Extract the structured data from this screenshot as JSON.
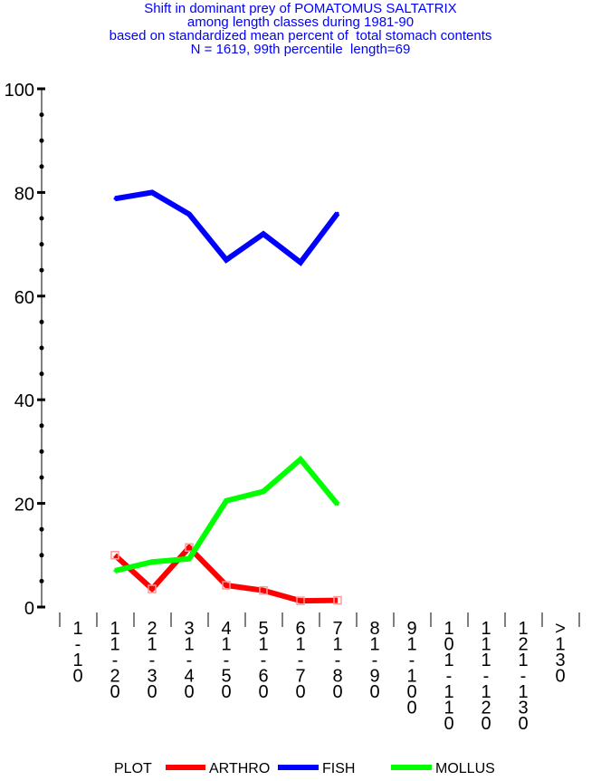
{
  "chart_data": {
    "type": "line",
    "title": [
      "Shift in dominant prey of POMATOMUS SALTATRIX",
      "among length classes during 1981-90",
      "based on standardized mean percent of  total stomach contents",
      "N = 1619, 99th percentile  length=69"
    ],
    "categories": [
      "1-10",
      "11-20",
      "21-30",
      "31-40",
      "41-50",
      "51-60",
      "61-70",
      "71-80",
      "81-90",
      "91-100",
      "101-110",
      "111-120",
      "121-130",
      ">130"
    ],
    "category_columns": [
      [
        "1",
        "-",
        "1",
        "0"
      ],
      [
        "1",
        "1",
        "-",
        "2",
        "0"
      ],
      [
        "2",
        "1",
        "-",
        "3",
        "0"
      ],
      [
        "3",
        "1",
        "-",
        "4",
        "0"
      ],
      [
        "4",
        "1",
        "-",
        "5",
        "0"
      ],
      [
        "5",
        "1",
        "-",
        "6",
        "0"
      ],
      [
        "6",
        "1",
        "-",
        "7",
        "0"
      ],
      [
        "7",
        "1",
        "-",
        "8",
        "0"
      ],
      [
        "8",
        "1",
        "-",
        "9",
        "0"
      ],
      [
        "9",
        "1",
        "-",
        "1",
        "0",
        "0"
      ],
      [
        "1",
        "0",
        "1",
        "-",
        "1",
        "1",
        "0"
      ],
      [
        "1",
        "1",
        "1",
        "-",
        "1",
        "2",
        "0"
      ],
      [
        "1",
        "2",
        "1",
        "-",
        "1",
        "3",
        "0"
      ],
      [
        ">",
        "1",
        "3",
        "0"
      ]
    ],
    "yticks": [
      "0",
      "20",
      "40",
      "60",
      "80",
      "100"
    ],
    "ylim": [
      0,
      100
    ],
    "legend": {
      "placement": "bottom",
      "prefix": "PLOT"
    },
    "series": [
      {
        "name": "ARTHRO",
        "color": "#ff0000",
        "markers": true,
        "values": [
          null,
          10.0,
          3.5,
          11.5,
          4.2,
          3.2,
          1.2,
          1.3,
          null,
          null,
          null,
          null,
          null,
          null
        ]
      },
      {
        "name": "FISH",
        "color": "#0000ff",
        "markers": false,
        "values": [
          null,
          78.8,
          80.0,
          75.8,
          67.0,
          72.0,
          66.5,
          76.0,
          null,
          null,
          null,
          null,
          null,
          null
        ]
      },
      {
        "name": "MOLLUS",
        "color": "#00ff00",
        "markers": false,
        "values": [
          null,
          7.0,
          8.7,
          9.3,
          20.5,
          22.3,
          28.5,
          19.8,
          null,
          null,
          null,
          null,
          null,
          null
        ]
      }
    ]
  }
}
